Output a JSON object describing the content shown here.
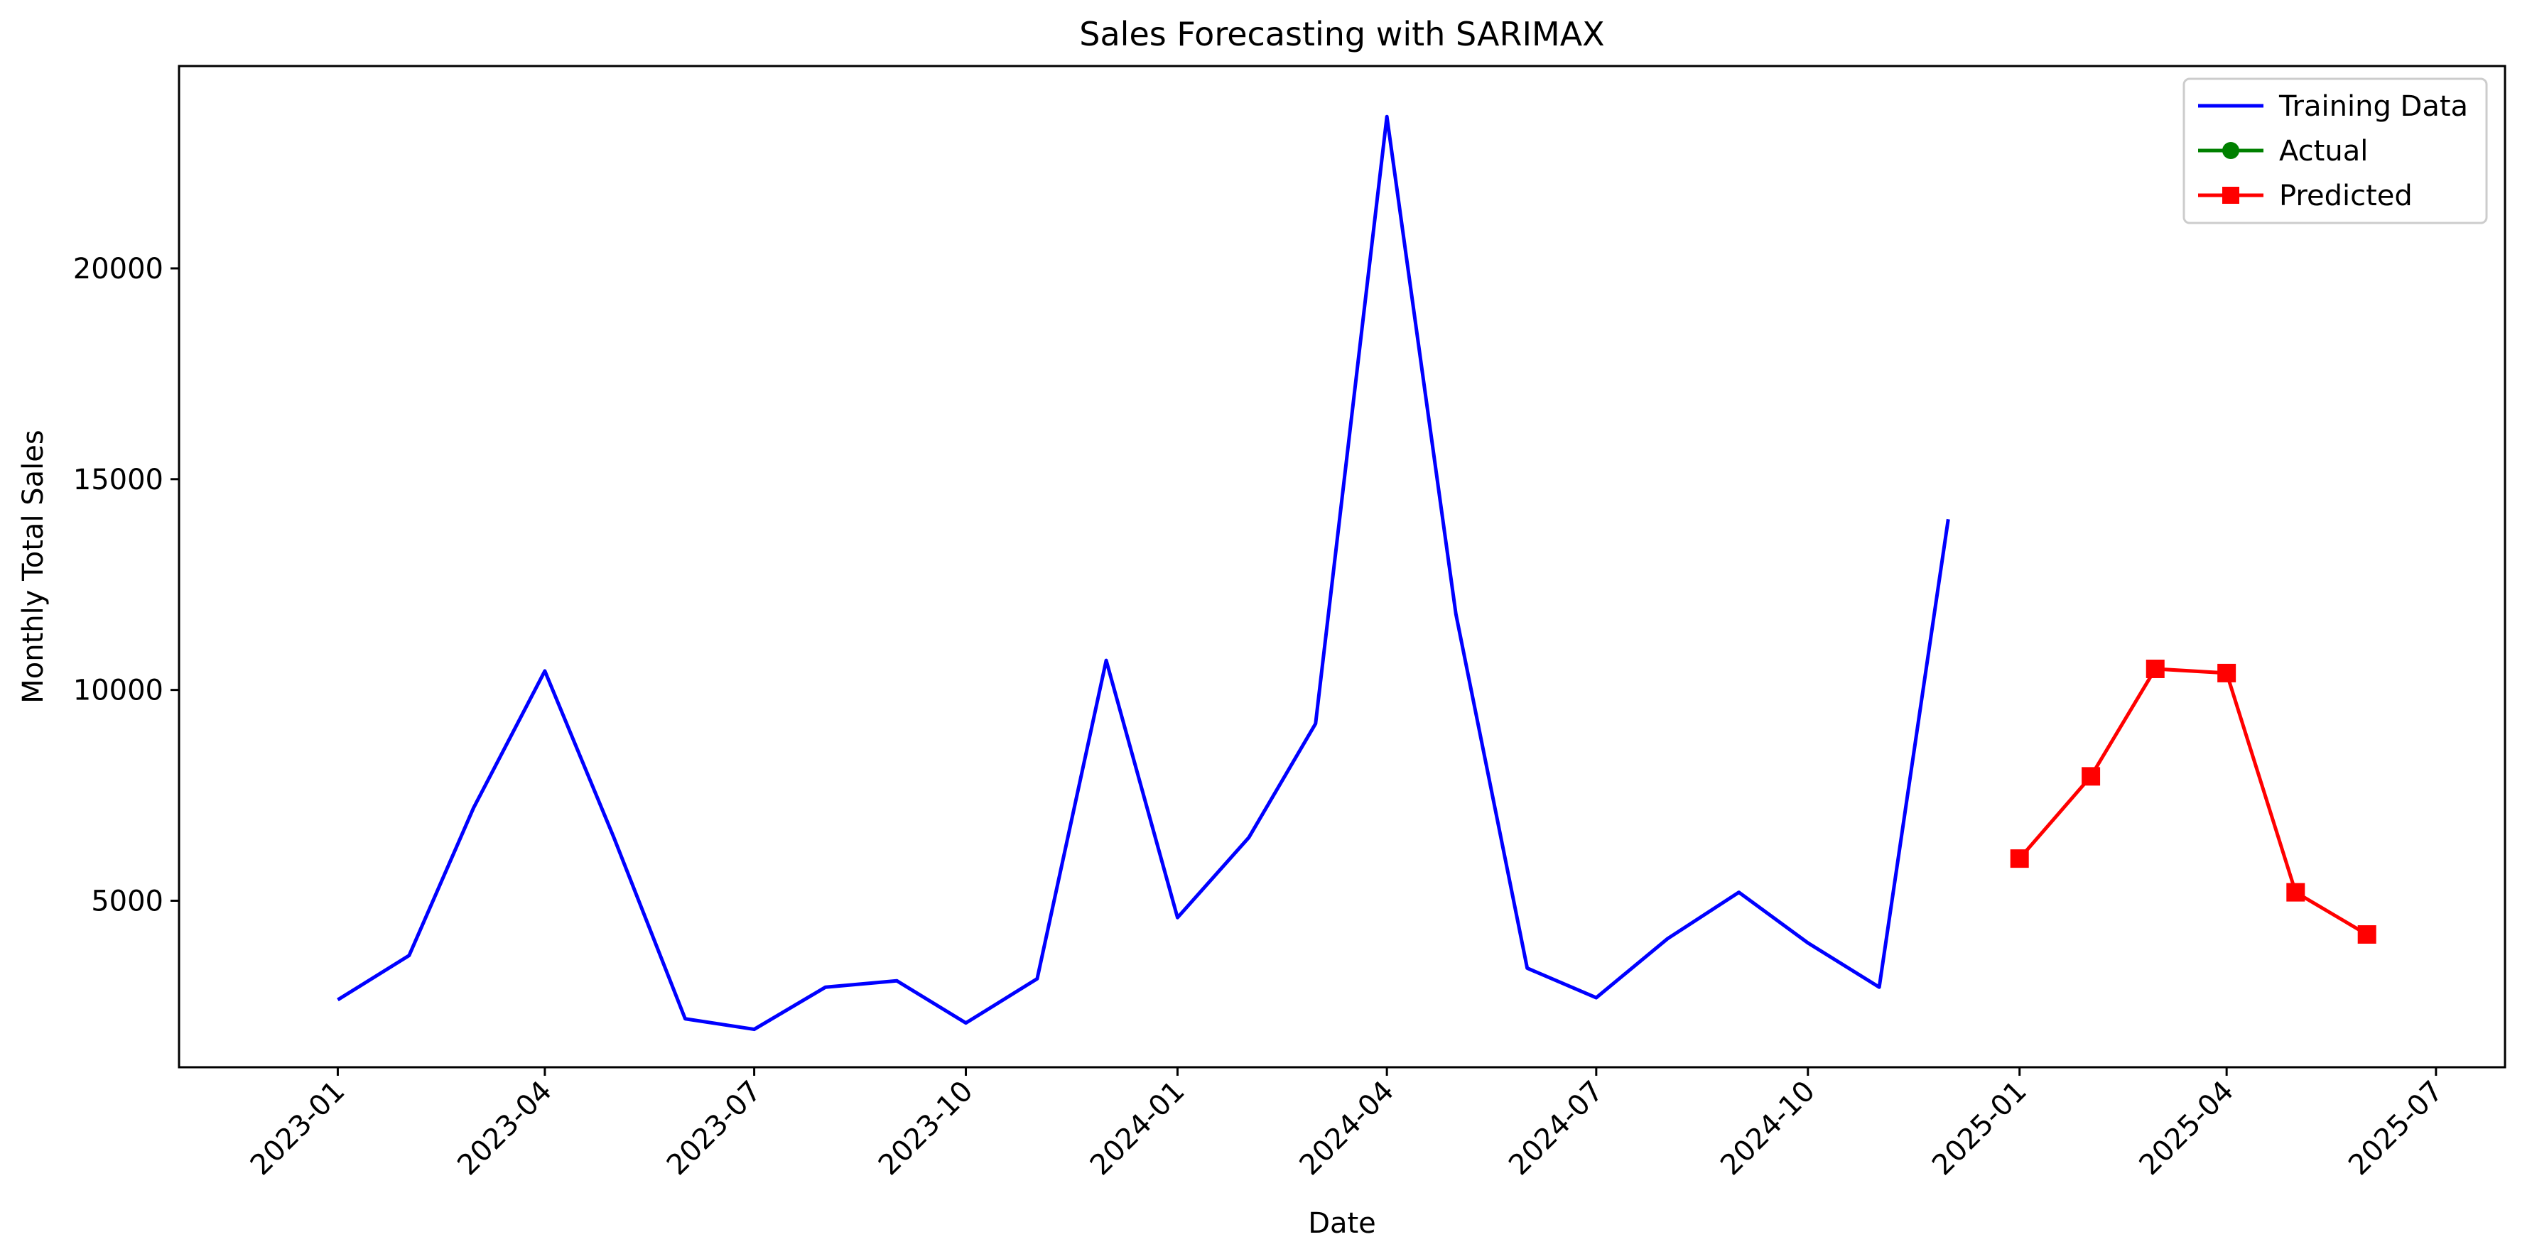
{
  "chart_data": {
    "type": "line",
    "title": "Sales Forecasting with SARIMAX",
    "xlabel": "Date",
    "ylabel": "Monthly Total Sales",
    "xlim": [
      "2022-10-24",
      "2025-07-31"
    ],
    "ylim": [
      1050,
      24800
    ],
    "x_ticks": [
      "2023-01",
      "2023-04",
      "2023-07",
      "2023-10",
      "2024-01",
      "2024-04",
      "2024-07",
      "2024-10",
      "2025-01",
      "2025-04",
      "2025-07"
    ],
    "y_ticks": [
      5000,
      10000,
      15000,
      20000
    ],
    "grid": false,
    "legend_position": "top-right",
    "colors": {
      "training": "#0000ff",
      "actual": "#008000",
      "predicted": "#ff0000"
    },
    "series": [
      {
        "name": "Training Data",
        "color": "#0000ff",
        "marker": "none",
        "x": [
          "2023-01-01",
          "2023-02-01",
          "2023-03-01",
          "2023-04-01",
          "2023-05-01",
          "2023-06-01",
          "2023-07-01",
          "2023-08-01",
          "2023-09-01",
          "2023-10-01",
          "2023-11-01",
          "2023-12-01",
          "2024-01-01",
          "2024-02-01",
          "2024-03-01",
          "2024-04-01",
          "2024-05-01",
          "2024-06-01",
          "2024-07-01",
          "2024-08-01",
          "2024-09-01",
          "2024-10-01",
          "2024-11-01",
          "2024-12-01"
        ],
        "y": [
          2650,
          3700,
          7200,
          10450,
          6500,
          2200,
          1950,
          2950,
          3100,
          2100,
          3150,
          10700,
          4600,
          6500,
          9200,
          23600,
          11800,
          3400,
          2700,
          4100,
          5200,
          4000,
          2950,
          14050
        ]
      },
      {
        "name": "Actual",
        "color": "#008000",
        "marker": "circle",
        "x": [],
        "y": []
      },
      {
        "name": "Predicted",
        "color": "#ff0000",
        "marker": "square",
        "x": [
          "2025-01-01",
          "2025-02-01",
          "2025-03-01",
          "2025-04-01",
          "2025-05-01",
          "2025-06-01"
        ],
        "y": [
          6000,
          7950,
          10500,
          10400,
          5200,
          4200
        ]
      }
    ]
  }
}
